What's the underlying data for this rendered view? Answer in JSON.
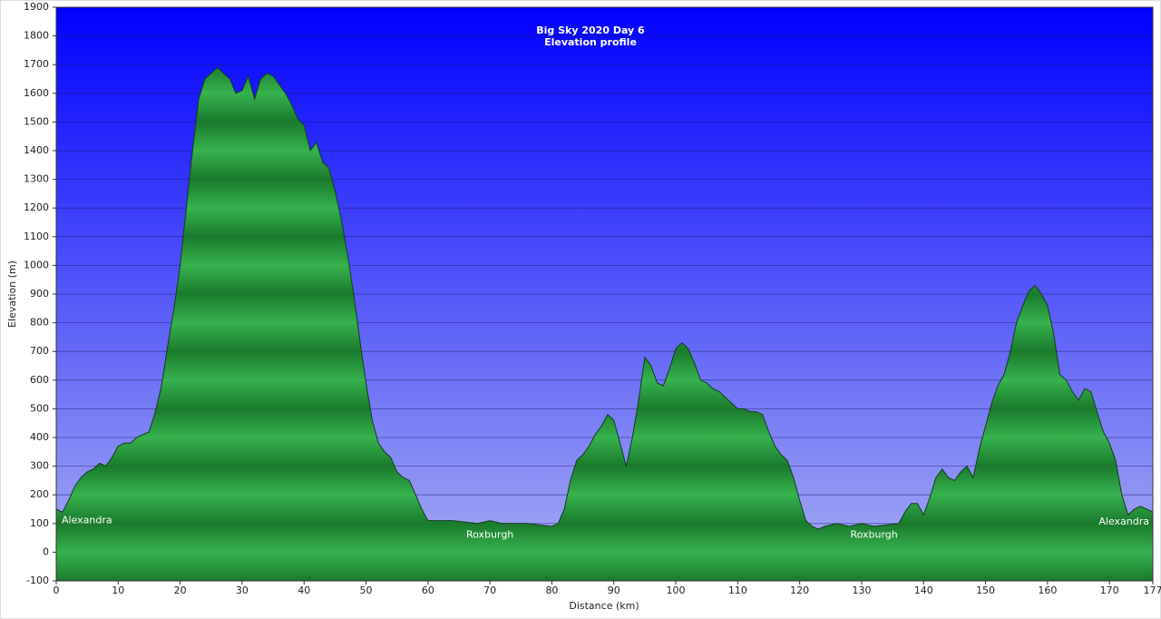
{
  "chart_data": {
    "type": "area",
    "title": "Big Sky 2020 Day 6",
    "subtitle": "Elevation profile",
    "x_label": "Distance  (km)",
    "y_label": "Elevation (m)",
    "color": "#1d8f36",
    "grid": true,
    "x": [
      0,
      1,
      2,
      3,
      4,
      5,
      6,
      7,
      8,
      9,
      10,
      11,
      12,
      13,
      14,
      15,
      16,
      17,
      18,
      19,
      20,
      21,
      22,
      23,
      24,
      25,
      26,
      27,
      28,
      29,
      30,
      31,
      32,
      33,
      34,
      35,
      36,
      37,
      38,
      39,
      40,
      41,
      42,
      43,
      44,
      45,
      46,
      47,
      48,
      49,
      50,
      51,
      52,
      53,
      54,
      55,
      56,
      57,
      58,
      59,
      60,
      62,
      64,
      66,
      68,
      70,
      72,
      74,
      76,
      78,
      80,
      81,
      82,
      83,
      84,
      85,
      86,
      87,
      88,
      89,
      90,
      91,
      92,
      93,
      94,
      95,
      96,
      97,
      98,
      99,
      100,
      101,
      102,
      103,
      104,
      105,
      106,
      107,
      108,
      109,
      110,
      111,
      112,
      113,
      114,
      115,
      116,
      117,
      118,
      119,
      120,
      121,
      122,
      123,
      124,
      126,
      128,
      130,
      132,
      134,
      136,
      137,
      138,
      139,
      140,
      141,
      142,
      143,
      144,
      145,
      146,
      147,
      148,
      149,
      150,
      151,
      152,
      153,
      154,
      155,
      156,
      157,
      158,
      159,
      160,
      161,
      162,
      163,
      164,
      165,
      166,
      167,
      168,
      169,
      170,
      171,
      172,
      173,
      174,
      175,
      176,
      177
    ],
    "values": [
      150,
      140,
      180,
      230,
      260,
      280,
      290,
      310,
      300,
      330,
      370,
      380,
      380,
      400,
      410,
      420,
      490,
      580,
      720,
      850,
      1000,
      1200,
      1400,
      1580,
      1650,
      1670,
      1690,
      1670,
      1650,
      1600,
      1610,
      1660,
      1580,
      1650,
      1670,
      1660,
      1630,
      1600,
      1560,
      1510,
      1490,
      1400,
      1430,
      1360,
      1340,
      1260,
      1160,
      1040,
      900,
      740,
      590,
      460,
      380,
      350,
      330,
      280,
      260,
      250,
      200,
      150,
      110,
      110,
      110,
      105,
      100,
      110,
      100,
      100,
      100,
      95,
      90,
      100,
      150,
      250,
      320,
      340,
      370,
      410,
      440,
      480,
      460,
      380,
      300,
      400,
      530,
      680,
      650,
      590,
      580,
      640,
      710,
      730,
      710,
      660,
      600,
      590,
      570,
      560,
      540,
      520,
      500,
      500,
      490,
      490,
      480,
      420,
      370,
      340,
      320,
      260,
      180,
      110,
      90,
      80,
      90,
      100,
      90,
      100,
      90,
      95,
      100,
      140,
      170,
      170,
      130,
      190,
      260,
      290,
      260,
      250,
      280,
      300,
      260,
      360,
      440,
      520,
      580,
      620,
      700,
      800,
      860,
      910,
      930,
      900,
      860,
      760,
      620,
      600,
      560,
      530,
      570,
      560,
      490,
      420,
      380,
      320,
      200,
      130,
      150,
      160,
      150,
      140
    ],
    "xlim": [
      0,
      177
    ],
    "xticks": [
      0,
      10,
      20,
      30,
      40,
      50,
      60,
      70,
      80,
      90,
      100,
      110,
      120,
      130,
      140,
      150,
      160,
      170,
      177
    ],
    "ylim": [
      -100,
      1900
    ],
    "yticks": [
      -100,
      0,
      100,
      200,
      300,
      400,
      500,
      600,
      700,
      800,
      900,
      1000,
      1100,
      1200,
      1300,
      1400,
      1500,
      1600,
      1700,
      1800,
      1900
    ],
    "annotations": [
      {
        "text": "Alexandra",
        "x": 5,
        "y": 110
      },
      {
        "text": "Roxburgh",
        "x": 70,
        "y": 60
      },
      {
        "text": "Roxburgh",
        "x": 132,
        "y": 60
      },
      {
        "text": "Alexandra",
        "x": 172,
        "y": 105
      }
    ]
  }
}
